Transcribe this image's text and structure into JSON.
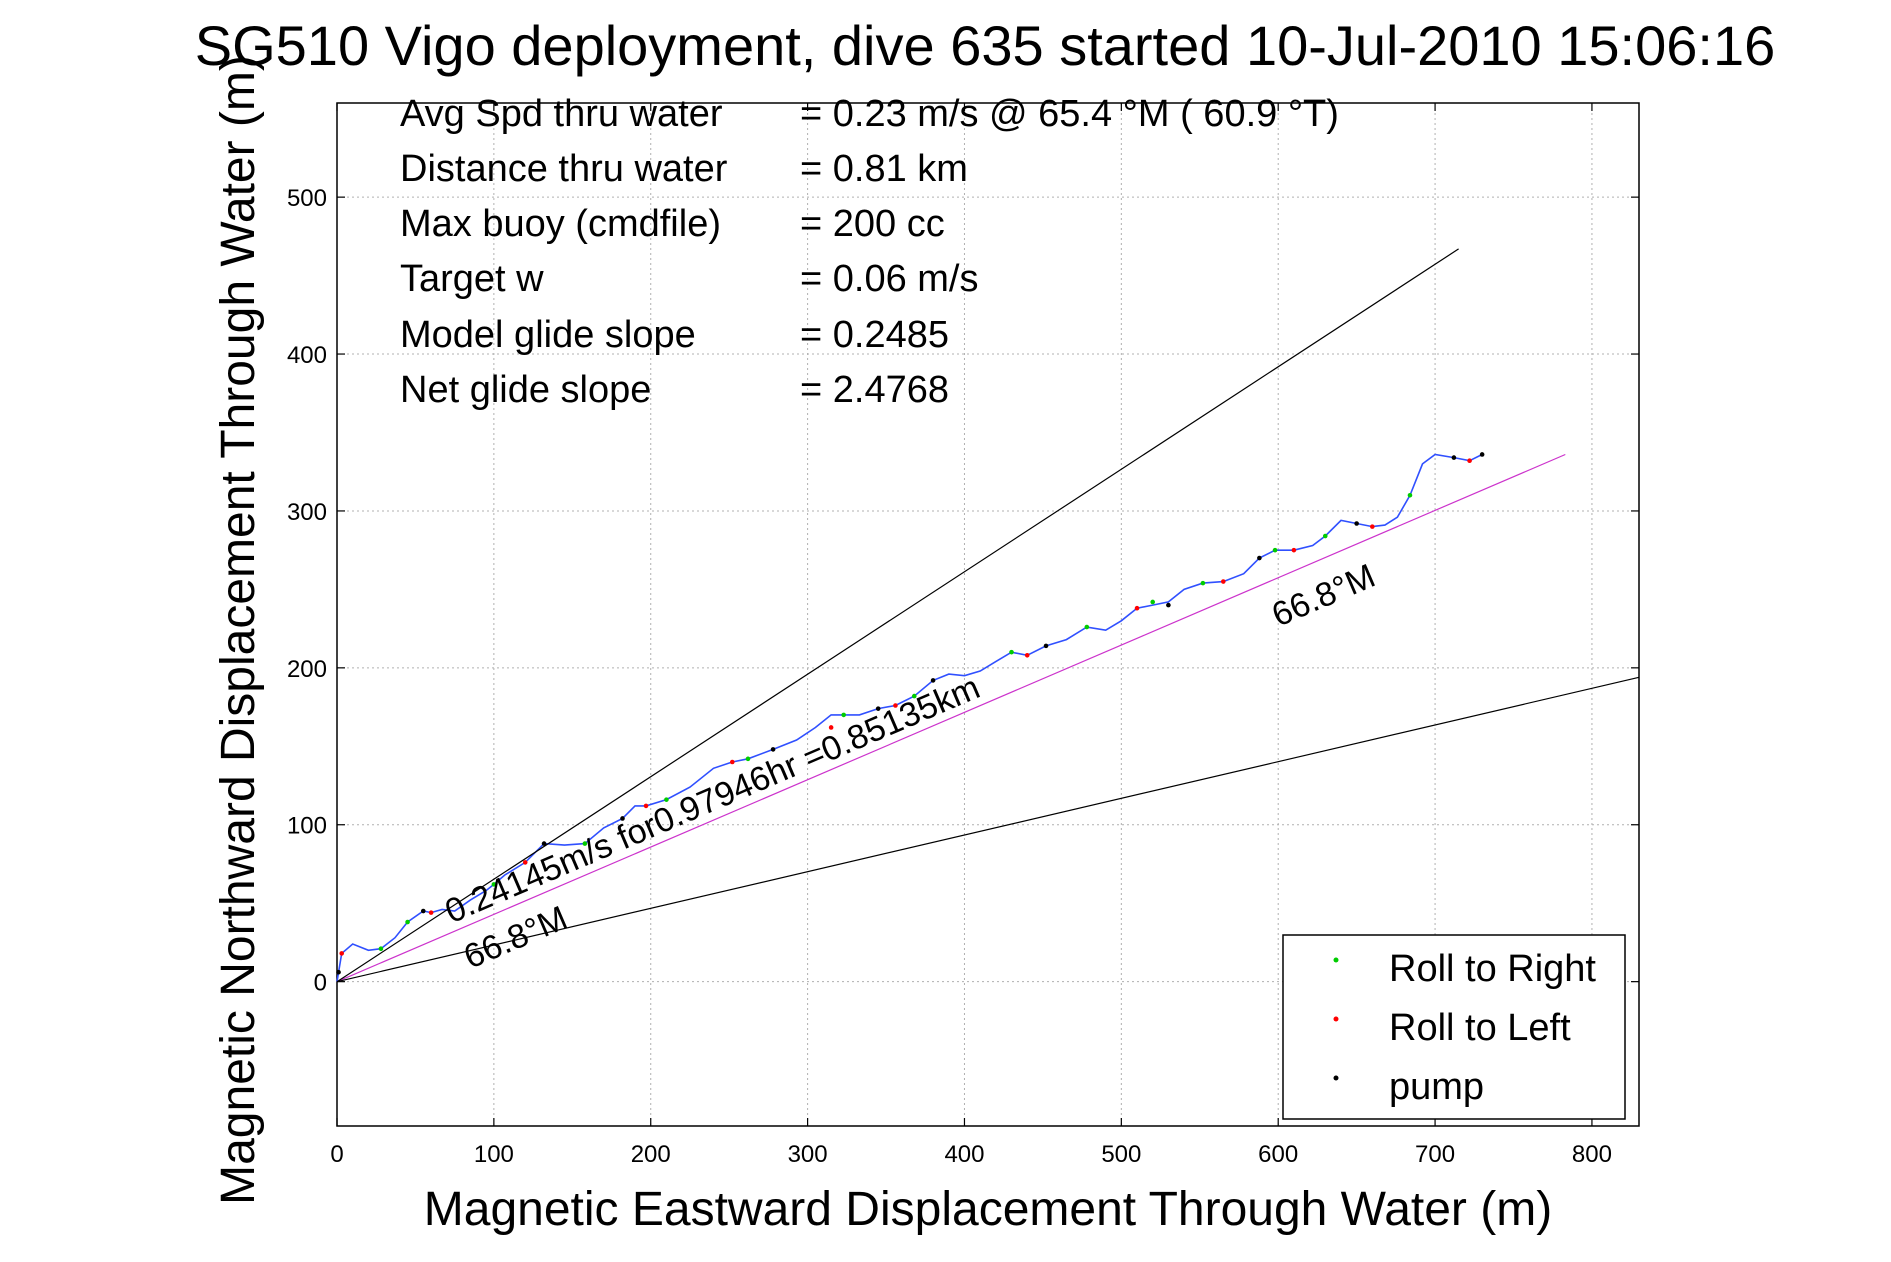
{
  "title": "SG510 Vigo deployment, dive 635 started 10-Jul-2010 15:06:16",
  "stats": [
    {
      "label": "Avg Spd thru water",
      "value": "=  0.23 m/s @  65.4 °M ( 60.9 °T)"
    },
    {
      "label": "Distance thru water",
      "value": "=  0.81 km"
    },
    {
      "label": "Max buoy (cmdfile)",
      "value": "= 200 cc"
    },
    {
      "label": "Target w",
      "value": "= 0.06 m/s"
    },
    {
      "label": "Model glide slope",
      "value": "= 0.2485"
    },
    {
      "label": "Net glide slope",
      "value": "= 2.4768"
    }
  ],
  "annotations": {
    "speed_text": "0.24145m/s for0.97946hr =0.85135km",
    "heading_lower": "66.8°M",
    "heading_upper": "66.8°M"
  },
  "legend": {
    "position": "bottom-right",
    "items": [
      {
        "label": "Roll to Right",
        "color": "#00cc00"
      },
      {
        "label": "Roll to Left",
        "color": "#ff0000"
      },
      {
        "label": "pump",
        "color": "#000000"
      }
    ]
  },
  "chart_data": {
    "type": "line",
    "xlabel": "Magnetic Eastward Displacement Through Water (m)",
    "ylabel": "Magnetic Northward Displacement Through Water (m)",
    "xlim": [
      0,
      830
    ],
    "ylim": [
      -92,
      560
    ],
    "xticks": [
      0,
      100,
      200,
      300,
      400,
      500,
      600,
      700,
      800
    ],
    "yticks": [
      0,
      100,
      200,
      300,
      400,
      500
    ],
    "grid": true,
    "series": [
      {
        "kind": "track",
        "color": "#3050ff",
        "x": [
          0,
          3,
          10,
          20,
          28,
          37,
          45,
          55,
          60,
          67,
          75,
          85,
          95,
          100,
          107,
          120,
          132,
          145,
          158,
          170,
          182,
          190,
          197,
          210,
          225,
          240,
          252,
          262,
          278,
          293,
          305,
          315,
          323,
          333,
          345,
          356,
          368,
          380,
          390,
          400,
          410,
          420,
          430,
          440,
          452,
          465,
          478,
          490,
          500,
          510,
          520,
          530,
          540,
          552,
          565,
          578,
          588,
          598,
          610,
          622,
          630,
          640,
          650,
          660,
          668,
          676,
          684,
          692,
          700,
          712,
          722,
          730
        ],
        "y": [
          0,
          18,
          24,
          20,
          21,
          28,
          38,
          45,
          44,
          46,
          45,
          52,
          58,
          62,
          68,
          76,
          88,
          87,
          88,
          98,
          104,
          112,
          112,
          116,
          124,
          136,
          140,
          142,
          148,
          154,
          162,
          170,
          170,
          170,
          174,
          176,
          182,
          192,
          196,
          195,
          198,
          204,
          210,
          208,
          214,
          218,
          226,
          224,
          230,
          238,
          240,
          242,
          250,
          254,
          255,
          260,
          270,
          275,
          275,
          278,
          284,
          294,
          292,
          290,
          291,
          296,
          310,
          330,
          336,
          334,
          332,
          336
        ]
      },
      {
        "kind": "mean-heading",
        "color": "#cc33cc",
        "x": [
          0,
          783
        ],
        "y": [
          0,
          336
        ]
      },
      {
        "kind": "envelope-upper",
        "color": "#000000",
        "x": [
          0,
          715
        ],
        "y": [
          0,
          467
        ]
      },
      {
        "kind": "envelope-lower",
        "color": "#000000",
        "x": [
          0,
          830
        ],
        "y": [
          0,
          194
        ]
      }
    ],
    "markers": {
      "roll_right": {
        "color": "#00cc00",
        "x": [
          28,
          45,
          100,
          158,
          210,
          262,
          323,
          368,
          430,
          478,
          520,
          552,
          598,
          630,
          684
        ],
        "y": [
          21,
          38,
          62,
          88,
          116,
          142,
          170,
          182,
          210,
          226,
          242,
          254,
          275,
          284,
          310
        ]
      },
      "roll_left": {
        "color": "#ff0000",
        "x": [
          3,
          60,
          120,
          197,
          252,
          315,
          356,
          440,
          510,
          565,
          610,
          660,
          722
        ],
        "y": [
          18,
          44,
          76,
          112,
          140,
          162,
          176,
          208,
          238,
          255,
          275,
          290,
          332
        ]
      },
      "pump": {
        "color": "#000000",
        "x": [
          1,
          55,
          132,
          182,
          278,
          345,
          380,
          452,
          530,
          588,
          650,
          712,
          730
        ],
        "y": [
          6,
          45,
          88,
          104,
          148,
          174,
          192,
          214,
          240,
          270,
          292,
          334,
          336
        ]
      }
    }
  }
}
